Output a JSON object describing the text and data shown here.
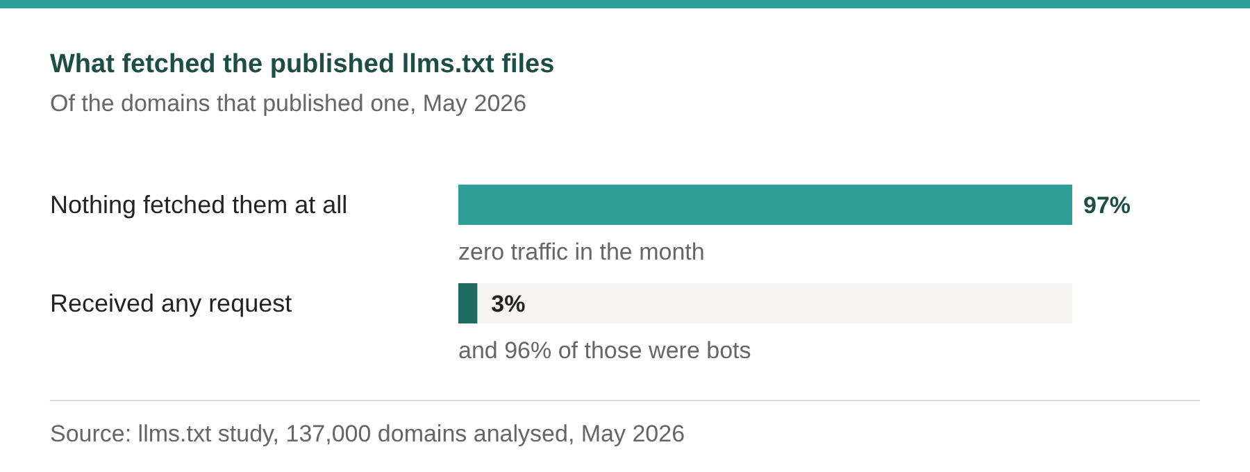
{
  "chart_data": {
    "type": "bar",
    "orientation": "horizontal",
    "title": "What fetched the published llms.txt files",
    "subtitle": "Of the domains that published one, May 2026",
    "categories": [
      "Nothing fetched them at all",
      "Received any request"
    ],
    "values": [
      97,
      3
    ],
    "colors": [
      "#2e9e96",
      "#1f6b64"
    ],
    "value_labels": [
      "97%",
      "3%"
    ],
    "annotations": [
      "zero traffic in the month",
      "and 96% of those were bots",
      "Source: llms.txt study, 137,000 domains analysed, May 2026"
    ]
  }
}
